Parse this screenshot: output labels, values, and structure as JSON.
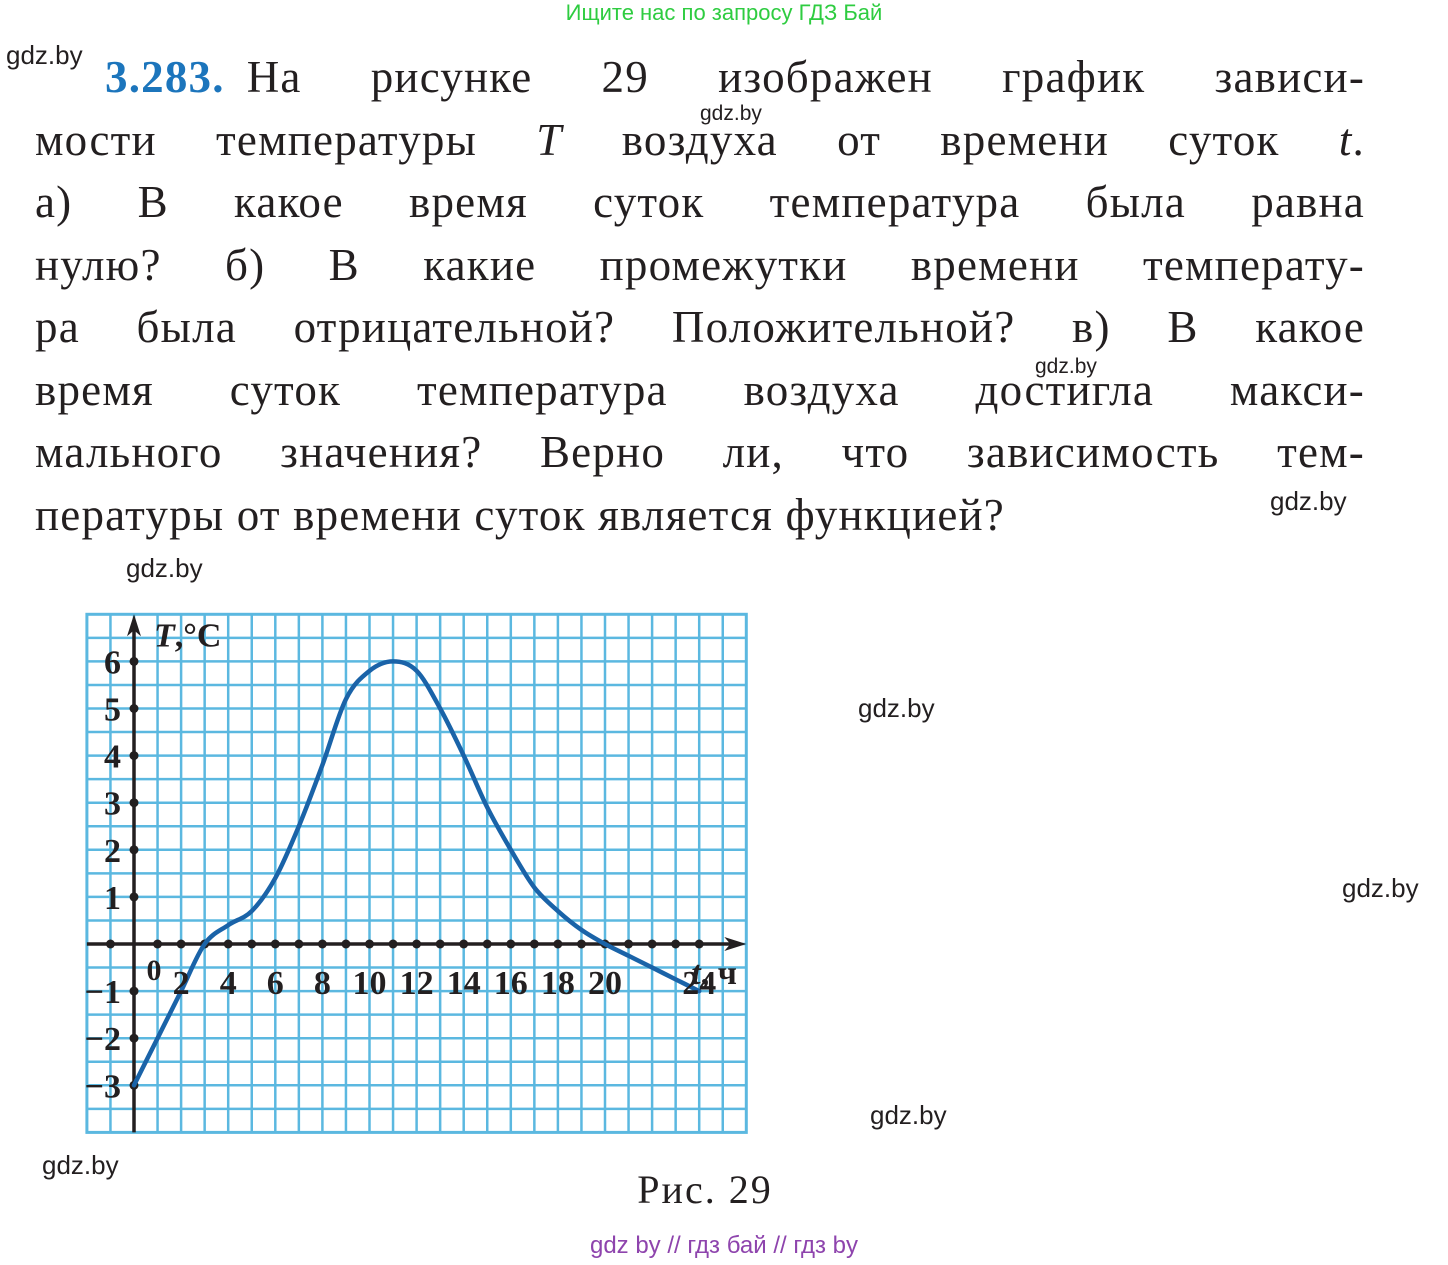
{
  "banner": "Ищите нас по запросу ГДЗ Бай",
  "problem": {
    "number": "3.283.",
    "line1": "На рисунке 29 изображен график зависи-",
    "line2_a": "мости температуры ",
    "line2_var1": "T",
    "line2_b": " воздуха от времени суток ",
    "line2_var2": "t",
    "line2_c": ".",
    "line3": "а) В какое время суток температура была равна",
    "line4": "нулю? б) В какие промежутки времени температу-",
    "line5": "ра была отрицательной? Положительной? в) В какое",
    "line6": "время суток температура воздуха достигла макси-",
    "line7": "мального значения? Верно ли, что зависимость тем-",
    "line8": "пературы от времени суток является функцией?"
  },
  "watermarks": [
    "gdz.by",
    "gdz.by",
    "gdz.by",
    "gdz.by",
    "gdz.by",
    "gdz.by",
    "gdz.by",
    "gdz.by",
    "gdz.by"
  ],
  "caption": "Рис. 29",
  "footer": "gdz by  //  гдз бай  //  гдз by",
  "colors": {
    "curve": "#1a63a8",
    "grid": "#5bb8e0",
    "axis": "#231f20",
    "number": "#1c75bc"
  },
  "chart_data": {
    "type": "line",
    "title": "",
    "xlabel_var": "t",
    "xlabel_unit": ", ч",
    "ylabel_var": "T",
    "ylabel_unit": ",°C",
    "origin_label": "0",
    "xlim": [
      -2,
      26
    ],
    "ylim": [
      -4,
      7
    ],
    "grid": true,
    "x_ticks": [
      2,
      4,
      6,
      8,
      10,
      12,
      14,
      16,
      18,
      20,
      24
    ],
    "x_tick_labels": [
      "2",
      "4",
      "6",
      "8",
      "10",
      "12",
      "14",
      "16",
      "18",
      "20",
      "24"
    ],
    "y_ticks": [
      -3,
      -2,
      -1,
      1,
      2,
      3,
      4,
      5,
      6
    ],
    "y_tick_labels": [
      "−3",
      "−2",
      "−1",
      "1",
      "2",
      "3",
      "4",
      "5",
      "6"
    ],
    "series": [
      {
        "x": [
          0,
          1,
          2,
          3,
          4,
          5,
          6,
          7,
          8,
          9,
          10,
          11,
          12,
          13,
          14,
          15,
          16,
          17,
          18,
          19,
          20,
          21,
          22,
          23,
          24
        ],
        "y": [
          -3,
          -2,
          -1,
          0,
          0.4,
          0.7,
          1.4,
          2.5,
          3.8,
          5.2,
          5.8,
          6,
          5.8,
          5,
          4,
          2.9,
          2,
          1.2,
          0.7,
          0.3,
          0,
          -0.25,
          -0.5,
          -0.75,
          -1
        ]
      }
    ]
  }
}
